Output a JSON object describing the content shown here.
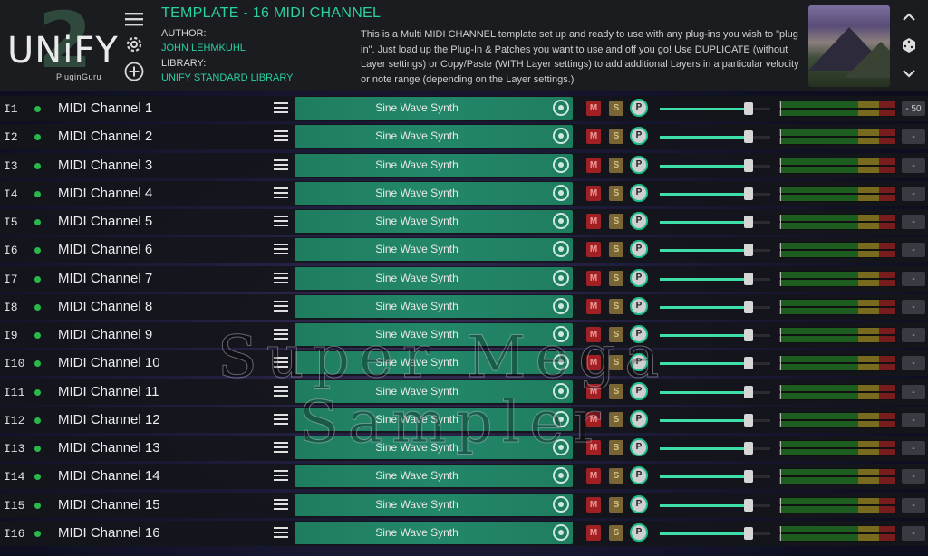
{
  "app": {
    "logo_word": "UNiFY",
    "logo_numeral": "2",
    "logo_sub": "PluginGuru"
  },
  "header": {
    "template_title": "TEMPLATE - 16 MIDI CHANNEL",
    "author_label": "AUTHOR:",
    "author_value": "JOHN LEHMKUHL",
    "library_label": "LIBRARY:",
    "library_value": "UNIFY STANDARD LIBRARY",
    "description": "This is a Multi MIDI CHANNEL template set up and ready to use with any plug-ins you wish to \"plug in\". Just load up the Plug-In & Patches you want to use and off you go! Use DUPLICATE (without Layer settings) or Copy/Paste (WITH Layer settings) to add additional Layers in a particular velocity or note range (depending on the Layer settings.)",
    "icons": [
      "menu-icon",
      "gear-icon",
      "add-icon",
      "chevron-up-icon",
      "dice-icon",
      "chevron-down-icon"
    ]
  },
  "watermark": {
    "line1": "Super Mega",
    "line2": "Sampler"
  },
  "colors": {
    "accent": "#28d1a0",
    "mute": "#a12024",
    "solo": "#7a6634",
    "active_dot": "#28b84c",
    "plugin_bg": "#1f7d5f"
  },
  "layers": [
    {
      "id": "I1",
      "name": "MIDI Channel 1",
      "plugin": "Sine Wave Synth",
      "mute": "M",
      "solo": "S",
      "pan": "P",
      "volume": "- 50",
      "level": 0.8
    },
    {
      "id": "I2",
      "name": "MIDI Channel 2",
      "plugin": "Sine Wave Synth",
      "mute": "M",
      "solo": "S",
      "pan": "P",
      "volume": "-",
      "level": 0.8
    },
    {
      "id": "I3",
      "name": "MIDI Channel 3",
      "plugin": "Sine Wave Synth",
      "mute": "M",
      "solo": "S",
      "pan": "P",
      "volume": "-",
      "level": 0.8
    },
    {
      "id": "I4",
      "name": "MIDI Channel 4",
      "plugin": "Sine Wave Synth",
      "mute": "M",
      "solo": "S",
      "pan": "P",
      "volume": "-",
      "level": 0.8
    },
    {
      "id": "I5",
      "name": "MIDI Channel 5",
      "plugin": "Sine Wave Synth",
      "mute": "M",
      "solo": "S",
      "pan": "P",
      "volume": "-",
      "level": 0.8
    },
    {
      "id": "I6",
      "name": "MIDI Channel 6",
      "plugin": "Sine Wave Synth",
      "mute": "M",
      "solo": "S",
      "pan": "P",
      "volume": "-",
      "level": 0.8
    },
    {
      "id": "I7",
      "name": "MIDI Channel 7",
      "plugin": "Sine Wave Synth",
      "mute": "M",
      "solo": "S",
      "pan": "P",
      "volume": "-",
      "level": 0.8
    },
    {
      "id": "I8",
      "name": "MIDI Channel 8",
      "plugin": "Sine Wave Synth",
      "mute": "M",
      "solo": "S",
      "pan": "P",
      "volume": "-",
      "level": 0.8
    },
    {
      "id": "I9",
      "name": "MIDI Channel 9",
      "plugin": "Sine Wave Synth",
      "mute": "M",
      "solo": "S",
      "pan": "P",
      "volume": "-",
      "level": 0.8
    },
    {
      "id": "I10",
      "name": "MIDI Channel 10",
      "plugin": "Sine Wave Synth",
      "mute": "M",
      "solo": "S",
      "pan": "P",
      "volume": "-",
      "level": 0.8
    },
    {
      "id": "I11",
      "name": "MIDI Channel 11",
      "plugin": "Sine Wave Synth",
      "mute": "M",
      "solo": "S",
      "pan": "P",
      "volume": "-",
      "level": 0.8
    },
    {
      "id": "I12",
      "name": "MIDI Channel 12",
      "plugin": "Sine Wave Synth",
      "mute": "M",
      "solo": "S",
      "pan": "P",
      "volume": "-",
      "level": 0.8
    },
    {
      "id": "I13",
      "name": "MIDI Channel 13",
      "plugin": "Sine Wave Synth",
      "mute": "M",
      "solo": "S",
      "pan": "P",
      "volume": "-",
      "level": 0.8
    },
    {
      "id": "I14",
      "name": "MIDI Channel 14",
      "plugin": "Sine Wave Synth",
      "mute": "M",
      "solo": "S",
      "pan": "P",
      "volume": "-",
      "level": 0.8
    },
    {
      "id": "I15",
      "name": "MIDI Channel 15",
      "plugin": "Sine Wave Synth",
      "mute": "M",
      "solo": "S",
      "pan": "P",
      "volume": "-",
      "level": 0.8
    },
    {
      "id": "I16",
      "name": "MIDI Channel 16",
      "plugin": "Sine Wave Synth",
      "mute": "M",
      "solo": "S",
      "pan": "P",
      "volume": "-",
      "level": 0.8
    }
  ]
}
